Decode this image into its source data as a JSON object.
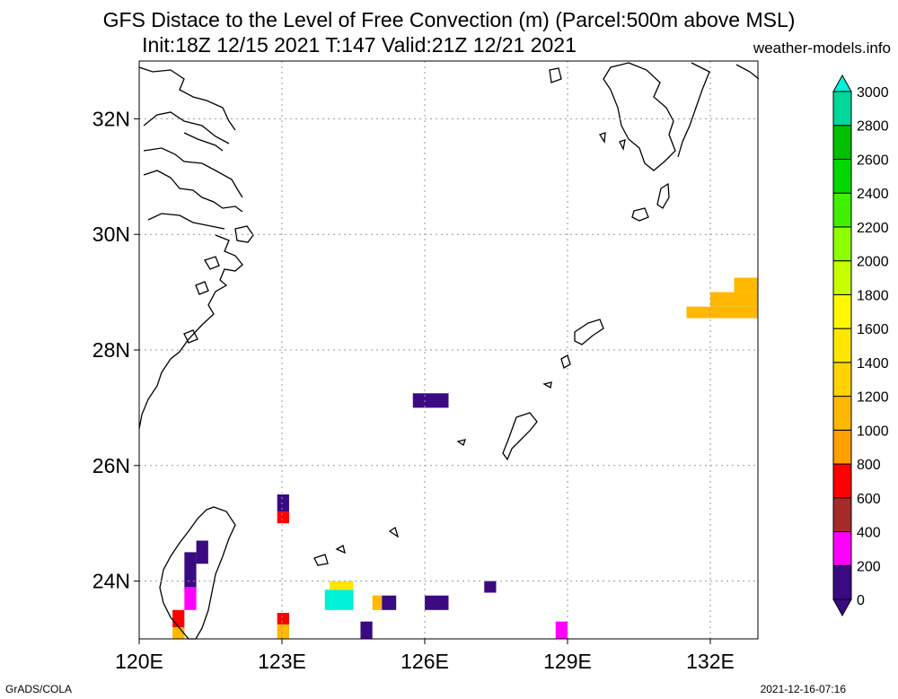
{
  "title": {
    "line1": "GFS Distace to the Level of Free Convection (m) (Parcel:500m above MSL)",
    "line2": "Init:18Z 12/15 2021 T:147 Valid:21Z 12/21 2021"
  },
  "site": "weather-models.info",
  "footer": {
    "left": "GrADS/COLA",
    "right": "2021-12-16-07:16"
  },
  "map": {
    "lon_range": [
      120,
      133
    ],
    "lat_range": [
      23,
      33
    ],
    "lon_ticks": [
      {
        "value": 120,
        "label": "120E"
      },
      {
        "value": 123,
        "label": "123E"
      },
      {
        "value": 126,
        "label": "126E"
      },
      {
        "value": 129,
        "label": "129E"
      },
      {
        "value": 132,
        "label": "132E"
      }
    ],
    "lat_ticks": [
      {
        "value": 24,
        "label": "24N"
      },
      {
        "value": 26,
        "label": "26N"
      },
      {
        "value": 28,
        "label": "28N"
      },
      {
        "value": 30,
        "label": "30N"
      },
      {
        "value": 32,
        "label": "32N"
      }
    ],
    "grid": "dotted"
  },
  "colorbar": {
    "levels": [
      {
        "value": 0,
        "color": "#3a0a82"
      },
      {
        "value": 200,
        "color": "#ff00ff"
      },
      {
        "value": 400,
        "color": "#a52a2a"
      },
      {
        "value": 600,
        "color": "#ff0000"
      },
      {
        "value": 800,
        "color": "#ffa000"
      },
      {
        "value": 1000,
        "color": "#ffb800"
      },
      {
        "value": 1200,
        "color": "#ffd200"
      },
      {
        "value": 1400,
        "color": "#ffe600"
      },
      {
        "value": 1600,
        "color": "#fff700"
      },
      {
        "value": 1800,
        "color": "#c8ff00"
      },
      {
        "value": 2000,
        "color": "#8cff00"
      },
      {
        "value": 2200,
        "color": "#40f000"
      },
      {
        "value": 2400,
        "color": "#00d800"
      },
      {
        "value": 2600,
        "color": "#00c000"
      },
      {
        "value": 2800,
        "color": "#00d89a"
      },
      {
        "value": 3000,
        "color": "#00f0d8"
      }
    ],
    "under_color": "#3a0a82",
    "over_color": "#00f0d8"
  },
  "field_cells": [
    {
      "lon0": 122.9,
      "lat0": 25.2,
      "lon1": 123.15,
      "lat1": 25.5,
      "level": 0
    },
    {
      "lon0": 122.9,
      "lat0": 25.0,
      "lon1": 123.15,
      "lat1": 25.2,
      "level": 600
    },
    {
      "lon0": 121.2,
      "lat0": 24.3,
      "lon1": 121.45,
      "lat1": 24.7,
      "level": 0
    },
    {
      "lon0": 120.95,
      "lat0": 23.85,
      "lon1": 121.2,
      "lat1": 24.5,
      "level": 0
    },
    {
      "lon0": 120.95,
      "lat0": 23.5,
      "lon1": 121.2,
      "lat1": 23.9,
      "level": 200
    },
    {
      "lon0": 120.7,
      "lat0": 23.2,
      "lon1": 120.95,
      "lat1": 23.5,
      "level": 600
    },
    {
      "lon0": 120.7,
      "lat0": 23.0,
      "lon1": 120.95,
      "lat1": 23.2,
      "level": 1000
    },
    {
      "lon0": 123.9,
      "lat0": 23.5,
      "lon1": 124.5,
      "lat1": 23.85,
      "level": 3000
    },
    {
      "lon0": 124.0,
      "lat0": 23.85,
      "lon1": 124.5,
      "lat1": 24.0,
      "level": 1400
    },
    {
      "lon0": 124.9,
      "lat0": 23.5,
      "lon1": 125.1,
      "lat1": 23.75,
      "level": 1000
    },
    {
      "lon0": 125.1,
      "lat0": 23.5,
      "lon1": 125.4,
      "lat1": 23.75,
      "level": 0
    },
    {
      "lon0": 126.0,
      "lat0": 23.5,
      "lon1": 126.5,
      "lat1": 23.75,
      "level": 0
    },
    {
      "lon0": 127.25,
      "lat0": 23.8,
      "lon1": 127.5,
      "lat1": 24.0,
      "level": 0
    },
    {
      "lon0": 125.75,
      "lat0": 27.0,
      "lon1": 126.5,
      "lat1": 27.25,
      "level": 0
    },
    {
      "lon0": 122.9,
      "lat0": 23.25,
      "lon1": 123.15,
      "lat1": 23.45,
      "level": 600
    },
    {
      "lon0": 122.9,
      "lat0": 23.0,
      "lon1": 123.15,
      "lat1": 23.25,
      "level": 1000
    },
    {
      "lon0": 124.65,
      "lat0": 23.0,
      "lon1": 124.9,
      "lat1": 23.3,
      "level": 0
    },
    {
      "lon0": 128.75,
      "lat0": 23.0,
      "lon1": 129.0,
      "lat1": 23.3,
      "level": 200
    },
    {
      "lon0": 131.5,
      "lat0": 28.55,
      "lon1": 133.0,
      "lat1": 28.75,
      "level": 1000
    },
    {
      "lon0": 132.0,
      "lat0": 28.75,
      "lon1": 133.0,
      "lat1": 29.0,
      "level": 1000
    },
    {
      "lon0": 132.5,
      "lat0": 29.0,
      "lon1": 133.0,
      "lat1": 29.25,
      "level": 1000
    }
  ]
}
